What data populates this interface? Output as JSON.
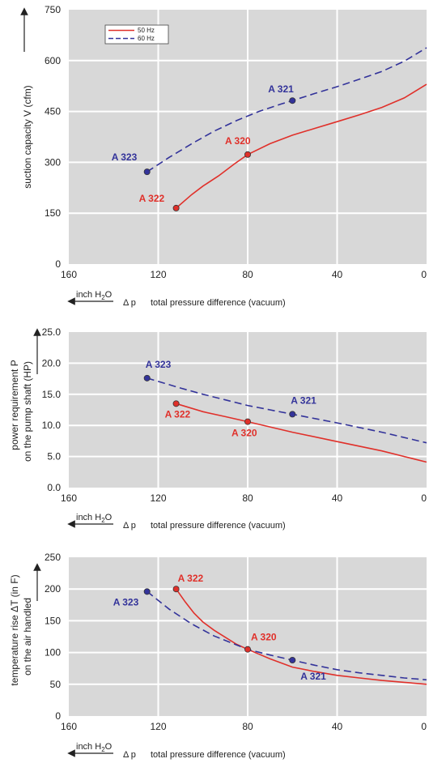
{
  "colors": {
    "s50": "#e0302a",
    "s60": "#33339a",
    "plot_bg": "#d8d8d8",
    "grid": "#ffffff"
  },
  "chart_data": [
    {
      "type": "line",
      "ylabel": "suction capacity V (cfm)",
      "xlabel": "total pressure difference (vacuum)",
      "dp_symbol": "Δ p",
      "unit_arrow_label": "inch H2O",
      "xlim": [
        160,
        0
      ],
      "ylim": [
        0,
        750
      ],
      "xticks": [
        "160",
        "120",
        "80",
        "40",
        "0"
      ],
      "xtick_values": [
        160,
        120,
        80,
        40,
        0
      ],
      "yticks": [
        "0",
        "150",
        "300",
        "450",
        "600",
        "750"
      ],
      "ytick_values": [
        0,
        150,
        300,
        450,
        600,
        750
      ],
      "grid": true,
      "legend_position": "top-left",
      "legend": [
        "50 Hz",
        "60 Hz"
      ],
      "series": [
        {
          "name": "50 Hz",
          "style": "solid",
          "x": [
            112,
            105,
            100,
            93,
            86,
            80,
            70,
            60,
            50,
            40,
            30,
            20,
            10,
            0
          ],
          "y": [
            165,
            205,
            230,
            260,
            295,
            323,
            355,
            380,
            400,
            420,
            440,
            462,
            490,
            530
          ]
        },
        {
          "name": "60 Hz",
          "style": "dashed",
          "x": [
            125,
            115,
            105,
            95,
            85,
            75,
            65,
            60,
            50,
            40,
            30,
            20,
            10,
            0
          ],
          "y": [
            272,
            315,
            355,
            392,
            423,
            450,
            472,
            482,
            503,
            523,
            545,
            568,
            598,
            638
          ]
        }
      ],
      "points": [
        {
          "label": "A 322",
          "x": 112,
          "y": 165,
          "series": "50 Hz"
        },
        {
          "label": "A 320",
          "x": 80,
          "y": 323,
          "series": "50 Hz"
        },
        {
          "label": "A 323",
          "x": 125,
          "y": 272,
          "series": "60 Hz"
        },
        {
          "label": "A 321",
          "x": 60,
          "y": 482,
          "series": "60 Hz"
        }
      ]
    },
    {
      "type": "line",
      "ylabel": [
        "power requirement P",
        "on the pump shaft (HP)"
      ],
      "xlabel": "total pressure difference (vacuum)",
      "dp_symbol": "Δ p",
      "unit_arrow_label": "inch H2O",
      "xlim": [
        160,
        0
      ],
      "ylim": [
        0,
        25
      ],
      "xticks": [
        "160",
        "120",
        "80",
        "40",
        "0"
      ],
      "xtick_values": [
        160,
        120,
        80,
        40,
        0
      ],
      "yticks": [
        "0.0",
        "5.0",
        "10.0",
        "15.0",
        "20.0",
        "25.0"
      ],
      "ytick_values": [
        0,
        5,
        10,
        15,
        20,
        25
      ],
      "grid": true,
      "series": [
        {
          "name": "50 Hz",
          "style": "solid",
          "x": [
            112,
            100,
            90,
            80,
            60,
            40,
            20,
            10,
            0
          ],
          "y": [
            13.5,
            12.2,
            11.4,
            10.6,
            8.9,
            7.4,
            5.9,
            5.0,
            4.1
          ]
        },
        {
          "name": "60 Hz",
          "style": "dashed",
          "x": [
            125,
            110,
            100,
            90,
            80,
            70,
            60,
            40,
            20,
            0
          ],
          "y": [
            17.6,
            16.0,
            15.0,
            14.1,
            13.2,
            12.5,
            11.8,
            10.4,
            8.9,
            7.2
          ]
        }
      ],
      "points": [
        {
          "label": "A 322",
          "x": 112,
          "y": 13.5,
          "series": "50 Hz"
        },
        {
          "label": "A 320",
          "x": 80,
          "y": 10.6,
          "series": "50 Hz"
        },
        {
          "label": "A 323",
          "x": 125,
          "y": 17.6,
          "series": "60 Hz"
        },
        {
          "label": "A 321",
          "x": 60,
          "y": 11.8,
          "series": "60 Hz"
        }
      ]
    },
    {
      "type": "line",
      "ylabel": [
        "temperature rise ΔT (in F)",
        "on the air handled"
      ],
      "xlabel": "total pressure difference (vacuum)",
      "dp_symbol": "Δ p",
      "unit_arrow_label": "inch H2O",
      "xlim": [
        160,
        0
      ],
      "ylim": [
        0,
        250
      ],
      "xticks": [
        "160",
        "120",
        "80",
        "40",
        "0"
      ],
      "xtick_values": [
        160,
        120,
        80,
        40,
        0
      ],
      "yticks": [
        "0",
        "50",
        "100",
        "150",
        "200",
        "250"
      ],
      "ytick_values": [
        0,
        50,
        100,
        150,
        200,
        250
      ],
      "grid": true,
      "series": [
        {
          "name": "50 Hz",
          "style": "solid",
          "x": [
            112,
            108,
            104,
            100,
            95,
            90,
            85,
            80,
            70,
            60,
            50,
            40,
            30,
            20,
            10,
            0
          ],
          "y": [
            200,
            180,
            162,
            148,
            135,
            124,
            113,
            105,
            90,
            77,
            70,
            64,
            60,
            56,
            53,
            50
          ]
        },
        {
          "name": "60 Hz",
          "style": "dashed",
          "x": [
            125,
            115,
            105,
            95,
            85,
            80,
            70,
            60,
            50,
            40,
            30,
            20,
            10,
            0
          ],
          "y": [
            196,
            168,
            145,
            126,
            112,
            105,
            96,
            88,
            80,
            73,
            68,
            64,
            60,
            57
          ]
        }
      ],
      "points": [
        {
          "label": "A 322",
          "x": 112,
          "y": 200,
          "series": "50 Hz"
        },
        {
          "label": "A 320",
          "x": 80,
          "y": 105,
          "series": "50 Hz"
        },
        {
          "label": "A 323",
          "x": 125,
          "y": 196,
          "series": "60 Hz"
        },
        {
          "label": "A 321",
          "x": 60,
          "y": 88,
          "series": "60 Hz"
        }
      ]
    }
  ]
}
